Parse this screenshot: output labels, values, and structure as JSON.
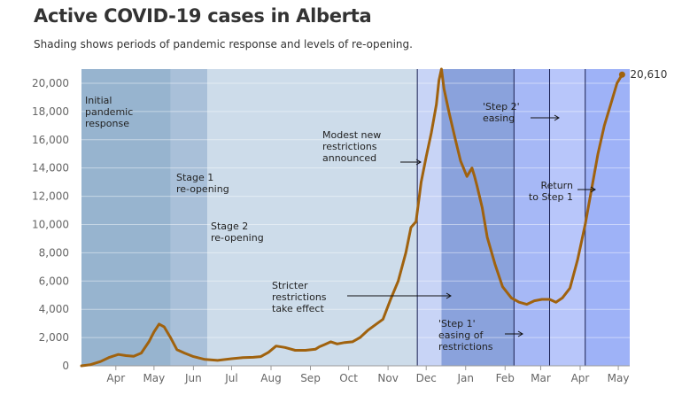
{
  "header": {
    "title": "Active COVID-19 cases in Alberta",
    "subtitle": "Shading shows periods of pandemic response and levels of re-opening."
  },
  "chart_data": {
    "type": "line",
    "title": "Active COVID-19 cases in Alberta",
    "subtitle": "Shading shows periods of pandemic response and levels of re-opening.",
    "xlabel": "",
    "ylabel": "",
    "ylim": [
      0,
      21000
    ],
    "yticks": [
      0,
      2000,
      4000,
      6000,
      8000,
      10000,
      12000,
      14000,
      16000,
      18000,
      20000
    ],
    "ytick_labels": [
      "0",
      "2,000",
      "4,000",
      "6,000",
      "8,000",
      "10,000",
      "12,000",
      "14,000",
      "16,000",
      "18,000",
      "20,000"
    ],
    "xlim": [
      "2020-03-05",
      "2021-05-10"
    ],
    "xticks": [
      {
        "date": "2020-04-01",
        "label": "Apr"
      },
      {
        "date": "2020-05-01",
        "label": "May"
      },
      {
        "date": "2020-06-01",
        "label": "Jun"
      },
      {
        "date": "2020-07-01",
        "label": "Jul"
      },
      {
        "date": "2020-08-01",
        "label": "Aug"
      },
      {
        "date": "2020-09-01",
        "label": "Sep"
      },
      {
        "date": "2020-10-01",
        "label": "Oct"
      },
      {
        "date": "2020-11-01",
        "label": "Nov"
      },
      {
        "date": "2020-12-01",
        "label": "Dec"
      },
      {
        "date": "2021-01-01",
        "label": "Jan"
      },
      {
        "date": "2021-02-01",
        "label": "Feb"
      },
      {
        "date": "2021-03-01",
        "label": "Mar"
      },
      {
        "date": "2021-04-01",
        "label": "Apr"
      },
      {
        "date": "2021-05-01",
        "label": "May"
      }
    ],
    "grid": true,
    "line_color": "#a0620e",
    "series": [
      {
        "x": [
          "2020-03-05",
          "2020-03-12",
          "2020-03-20",
          "2020-03-27",
          "2020-04-03",
          "2020-04-09",
          "2020-04-15",
          "2020-04-21",
          "2020-04-27",
          "2020-05-01",
          "2020-05-05",
          "2020-05-09",
          "2020-05-14",
          "2020-05-19",
          "2020-05-25",
          "2020-06-01",
          "2020-06-10",
          "2020-06-20",
          "2020-07-01",
          "2020-07-10",
          "2020-07-18",
          "2020-07-24",
          "2020-07-30",
          "2020-08-05",
          "2020-08-12",
          "2020-08-20",
          "2020-08-28",
          "2020-09-05",
          "2020-09-08",
          "2020-09-12",
          "2020-09-17",
          "2020-09-22",
          "2020-09-28",
          "2020-10-04",
          "2020-10-10",
          "2020-10-16",
          "2020-10-22",
          "2020-10-28",
          "2020-11-03",
          "2020-11-09",
          "2020-11-15",
          "2020-11-19",
          "2020-11-23",
          "2020-11-27",
          "2020-12-01",
          "2020-12-05",
          "2020-12-09",
          "2020-12-11",
          "2020-12-13",
          "2020-12-15",
          "2020-12-19",
          "2020-12-24",
          "2020-12-28",
          "2021-01-02",
          "2021-01-06",
          "2021-01-08",
          "2021-01-10",
          "2021-01-14",
          "2021-01-18",
          "2021-01-24",
          "2021-01-30",
          "2021-02-06",
          "2021-02-12",
          "2021-02-18",
          "2021-02-24",
          "2021-03-02",
          "2021-03-08",
          "2021-03-13",
          "2021-03-18",
          "2021-03-24",
          "2021-03-30",
          "2021-04-05",
          "2021-04-10",
          "2021-04-15",
          "2021-04-20",
          "2021-04-25",
          "2021-04-30",
          "2021-05-04"
        ],
        "y": [
          0,
          80,
          300,
          600,
          800,
          720,
          680,
          900,
          1700,
          2400,
          2950,
          2750,
          2000,
          1150,
          900,
          650,
          450,
          380,
          500,
          580,
          600,
          650,
          950,
          1400,
          1300,
          1100,
          1100,
          1180,
          1350,
          1500,
          1700,
          1550,
          1650,
          1700,
          2000,
          2500,
          2900,
          3300,
          4700,
          6000,
          8000,
          9800,
          10200,
          13000,
          14800,
          16500,
          18500,
          20200,
          21000,
          19600,
          17900,
          16000,
          14500,
          13400,
          14000,
          13400,
          12700,
          11200,
          9100,
          7200,
          5600,
          4800,
          4500,
          4350,
          4600,
          4700,
          4700,
          4500,
          4800,
          5500,
          7500,
          10000,
          12500,
          15000,
          17000,
          18500,
          20000,
          20610
        ]
      }
    ],
    "annotations": [
      {
        "text": [
          "Initial",
          "pandemic",
          "response"
        ]
      },
      {
        "text": [
          "Stage 1",
          "re-opening"
        ]
      },
      {
        "text": [
          "Stage 2",
          "re-opening"
        ]
      },
      {
        "text": [
          "Stricter",
          "restrictions",
          "take effect"
        ]
      },
      {
        "text": [
          "Modest new",
          "restrictions",
          "announced"
        ]
      },
      {
        "text": [
          "'Step 1'",
          "easing of",
          "restrictions"
        ]
      },
      {
        "text": [
          "'Step 2'",
          "easing"
        ]
      },
      {
        "text": [
          "Return",
          "to Step 1"
        ]
      }
    ],
    "end_label": "20,610",
    "periods": [
      {
        "start": "2020-03-05",
        "end": "2020-05-14",
        "color": "#97b4cf"
      },
      {
        "start": "2020-05-14",
        "end": "2020-06-12",
        "color": "#a9c0d9"
      },
      {
        "start": "2020-06-12",
        "end": "2020-11-24",
        "color": "#cddcea"
      },
      {
        "start": "2020-11-24",
        "end": "2020-12-13",
        "color": "#c8d4f6"
      },
      {
        "start": "2020-12-13",
        "end": "2021-02-08",
        "color": "#8aa2dc"
      },
      {
        "start": "2021-02-08",
        "end": "2021-03-08",
        "color": "#a6b8f6"
      },
      {
        "start": "2021-03-08",
        "end": "2021-04-05",
        "color": "#b8c6fa"
      },
      {
        "start": "2021-04-05",
        "end": "2021-05-10",
        "color": "#9eb2f7"
      }
    ],
    "period_dividers": [
      "2020-11-24",
      "2021-02-08",
      "2021-03-08",
      "2021-04-05"
    ]
  }
}
